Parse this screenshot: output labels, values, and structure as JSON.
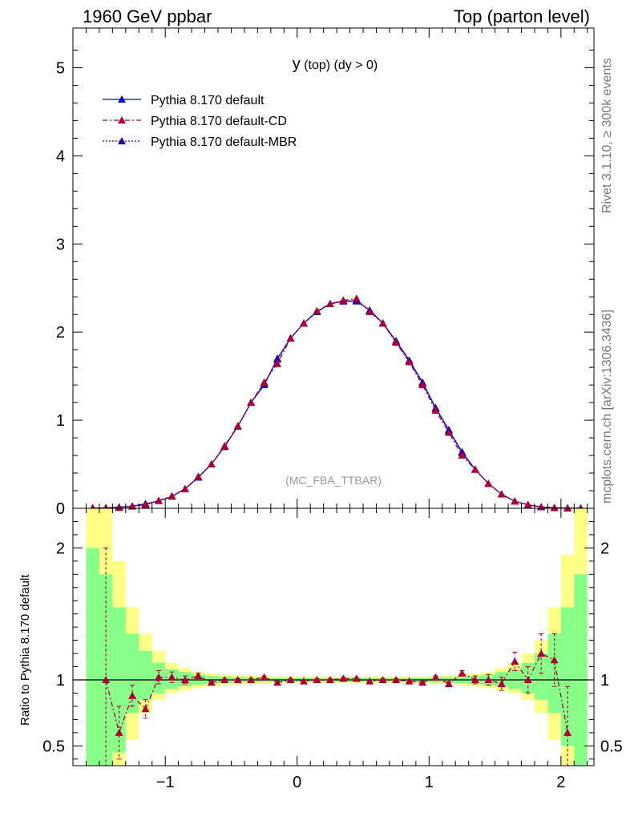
{
  "header": {
    "left": "1960 GeV ppbar",
    "right": "Top (parton level)"
  },
  "side_labels": {
    "rivet": "Rivet 3.1.10, ≥ 300k events",
    "mcplots": "mcplots.cern.ch [arXiv:1306.3436]"
  },
  "plot_title": {
    "main": "y",
    "sub": " (top)  (dy > 0)"
  },
  "watermark": "(MC_FBA_TTBAR)",
  "ratio_ylabel": "Ratio to Pythia 8.170 default",
  "legend": [
    {
      "name": "Pythia 8.170 default",
      "color": "#0000dd",
      "style": "solid"
    },
    {
      "name": "Pythia 8.170 default-CD",
      "color": "#aa0033",
      "style": "dashdot"
    },
    {
      "name": "Pythia 8.170 default-MBR",
      "color": "#2a0099",
      "style": "dotted"
    }
  ],
  "chart_data": {
    "type": "line",
    "x_ticks": [
      -1,
      0,
      1,
      2
    ],
    "x_tick_labels": [
      "−1",
      "0",
      "1",
      "2"
    ],
    "x_range": [
      -1.7,
      2.25
    ],
    "upper": {
      "y_range": [
        0,
        5.45
      ],
      "y_ticks": [
        0,
        1,
        2,
        3,
        4,
        5
      ],
      "x": [
        -1.55,
        -1.45,
        -1.35,
        -1.25,
        -1.15,
        -1.05,
        -0.95,
        -0.85,
        -0.75,
        -0.65,
        -0.55,
        -0.45,
        -0.35,
        -0.25,
        -0.15,
        -0.05,
        0.05,
        0.15,
        0.25,
        0.35,
        0.45,
        0.55,
        0.65,
        0.75,
        0.85,
        0.95,
        1.05,
        1.15,
        1.25,
        1.35,
        1.45,
        1.55,
        1.65,
        1.75,
        1.85,
        1.95,
        2.05,
        2.15
      ],
      "series": [
        {
          "name": "Pythia 8.170 default",
          "values": [
            0.003,
            0.005,
            0.012,
            0.025,
            0.05,
            0.085,
            0.135,
            0.22,
            0.35,
            0.5,
            0.7,
            0.93,
            1.2,
            1.4,
            1.7,
            1.93,
            2.1,
            2.23,
            2.32,
            2.35,
            2.35,
            2.25,
            2.1,
            1.9,
            1.68,
            1.43,
            1.14,
            0.89,
            0.64,
            0.44,
            0.28,
            0.16,
            0.08,
            0.04,
            0.015,
            0.006,
            0.002,
            0.001
          ]
        },
        {
          "name": "Pythia 8.170 default-CD",
          "values": [
            0.003,
            0.005,
            0.007,
            0.022,
            0.039,
            0.088,
            0.14,
            0.22,
            0.36,
            0.5,
            0.71,
            0.935,
            1.2,
            1.43,
            1.64,
            1.93,
            2.1,
            2.24,
            2.32,
            2.36,
            2.38,
            2.23,
            2.1,
            1.88,
            1.66,
            1.4,
            1.11,
            0.86,
            0.6,
            0.44,
            0.28,
            0.16,
            0.08,
            0.04,
            0.015,
            0.006,
            0.002,
            0.001
          ]
        },
        {
          "name": "Pythia 8.170 default-MBR",
          "values": [
            0.003,
            0.005,
            0.012,
            0.025,
            0.05,
            0.085,
            0.135,
            0.22,
            0.35,
            0.5,
            0.7,
            0.93,
            1.2,
            1.41,
            1.69,
            1.93,
            2.1,
            2.23,
            2.32,
            2.35,
            2.36,
            2.24,
            2.1,
            1.89,
            1.67,
            1.42,
            1.13,
            0.88,
            0.63,
            0.44,
            0.28,
            0.16,
            0.08,
            0.04,
            0.015,
            0.006,
            0.002,
            0.001
          ]
        }
      ]
    },
    "ratio": {
      "y_range": [
        0.35,
        2.3
      ],
      "y_ticks": [
        0.5,
        1,
        2
      ],
      "y_tick_labels": [
        "0.5",
        "1",
        "2"
      ],
      "reference": 1.0,
      "band_edges": [
        -1.6,
        -1.5,
        -1.4,
        -1.3,
        -1.2,
        -1.1,
        -1.0,
        -0.9,
        -0.8,
        -0.7,
        -0.6,
        -0.5,
        -0.4,
        -0.3,
        -0.2,
        -0.1,
        0.0,
        0.1,
        0.2,
        0.3,
        0.4,
        0.5,
        0.6,
        0.7,
        0.8,
        0.9,
        1.0,
        1.1,
        1.2,
        1.3,
        1.4,
        1.5,
        1.6,
        1.7,
        1.8,
        1.9,
        2.0,
        2.1,
        2.2
      ],
      "green_band": [
        [
          0.3,
          2.0
        ],
        [
          0.3,
          1.8
        ],
        [
          0.45,
          1.55
        ],
        [
          0.75,
          1.35
        ],
        [
          0.85,
          1.22
        ],
        [
          0.9,
          1.13
        ],
        [
          0.93,
          1.08
        ],
        [
          0.95,
          1.06
        ],
        [
          0.96,
          1.04
        ],
        [
          0.97,
          1.03
        ],
        [
          0.975,
          1.025
        ],
        [
          0.98,
          1.02
        ],
        [
          0.98,
          1.02
        ],
        [
          0.985,
          1.015
        ],
        [
          0.985,
          1.015
        ],
        [
          0.985,
          1.015
        ],
        [
          0.985,
          1.015
        ],
        [
          0.985,
          1.015
        ],
        [
          0.985,
          1.015
        ],
        [
          0.985,
          1.015
        ],
        [
          0.985,
          1.015
        ],
        [
          0.985,
          1.015
        ],
        [
          0.985,
          1.015
        ],
        [
          0.985,
          1.015
        ],
        [
          0.985,
          1.015
        ],
        [
          0.985,
          1.015
        ],
        [
          0.98,
          1.02
        ],
        [
          0.98,
          1.02
        ],
        [
          0.975,
          1.025
        ],
        [
          0.97,
          1.03
        ],
        [
          0.96,
          1.04
        ],
        [
          0.95,
          1.06
        ],
        [
          0.93,
          1.08
        ],
        [
          0.9,
          1.13
        ],
        [
          0.85,
          1.2
        ],
        [
          0.75,
          1.35
        ],
        [
          0.5,
          1.55
        ],
        [
          0.3,
          1.8
        ]
      ],
      "yellow_band": [
        [
          0.3,
          2.3
        ],
        [
          0.3,
          2.3
        ],
        [
          0.3,
          1.9
        ],
        [
          0.55,
          1.55
        ],
        [
          0.75,
          1.35
        ],
        [
          0.85,
          1.22
        ],
        [
          0.9,
          1.13
        ],
        [
          0.92,
          1.09
        ],
        [
          0.94,
          1.06
        ],
        [
          0.95,
          1.05
        ],
        [
          0.96,
          1.04
        ],
        [
          0.965,
          1.035
        ],
        [
          0.97,
          1.03
        ],
        [
          0.97,
          1.03
        ],
        [
          0.975,
          1.025
        ],
        [
          0.975,
          1.025
        ],
        [
          0.975,
          1.025
        ],
        [
          0.975,
          1.025
        ],
        [
          0.975,
          1.025
        ],
        [
          0.975,
          1.025
        ],
        [
          0.975,
          1.025
        ],
        [
          0.975,
          1.025
        ],
        [
          0.975,
          1.025
        ],
        [
          0.975,
          1.025
        ],
        [
          0.975,
          1.025
        ],
        [
          0.975,
          1.025
        ],
        [
          0.97,
          1.03
        ],
        [
          0.965,
          1.035
        ],
        [
          0.96,
          1.04
        ],
        [
          0.95,
          1.05
        ],
        [
          0.94,
          1.06
        ],
        [
          0.92,
          1.09
        ],
        [
          0.9,
          1.13
        ],
        [
          0.85,
          1.2
        ],
        [
          0.75,
          1.3
        ],
        [
          0.55,
          1.55
        ],
        [
          0.3,
          1.95
        ],
        [
          0.3,
          2.3
        ]
      ],
      "x": [
        -1.45,
        -1.35,
        -1.25,
        -1.15,
        -1.05,
        -0.95,
        -0.85,
        -0.75,
        -0.65,
        -0.55,
        -0.45,
        -0.35,
        -0.25,
        -0.15,
        -0.05,
        0.05,
        0.15,
        0.25,
        0.35,
        0.45,
        0.55,
        0.65,
        0.75,
        0.85,
        0.95,
        1.05,
        1.15,
        1.25,
        1.35,
        1.45,
        1.55,
        1.65,
        1.75,
        1.85,
        1.95,
        2.05
      ],
      "series": [
        {
          "name": "Pythia 8.170 default-CD",
          "values": [
            1.0,
            0.6,
            0.88,
            0.78,
            1.02,
            1.02,
            1.0,
            1.03,
            0.98,
            1.0,
            1.0,
            1.0,
            1.02,
            0.98,
            1.0,
            0.99,
            1.0,
            1.0,
            1.01,
            1.01,
            0.99,
            1.0,
            1.0,
            0.99,
            0.98,
            1.02,
            0.97,
            1.05,
            1.0,
            1.0,
            0.97,
            1.14,
            1.0,
            1.2,
            1.15,
            0.6
          ],
          "err_lo": [
            1.0,
            0.2,
            0.08,
            0.07,
            0.05,
            0.04,
            0.03,
            0.02,
            0.015,
            0.01,
            0.01,
            0.01,
            0.01,
            0.01,
            0.01,
            0.01,
            0.01,
            0.01,
            0.01,
            0.01,
            0.01,
            0.01,
            0.01,
            0.01,
            0.01,
            0.01,
            0.015,
            0.02,
            0.03,
            0.04,
            0.05,
            0.07,
            0.1,
            0.15,
            0.2,
            0.35
          ],
          "err_hi": [
            1.0,
            0.2,
            0.08,
            0.07,
            0.05,
            0.04,
            0.03,
            0.02,
            0.015,
            0.01,
            0.01,
            0.01,
            0.01,
            0.01,
            0.01,
            0.01,
            0.01,
            0.01,
            0.01,
            0.01,
            0.01,
            0.01,
            0.01,
            0.01,
            0.01,
            0.01,
            0.015,
            0.02,
            0.03,
            0.04,
            0.05,
            0.07,
            0.1,
            0.15,
            0.2,
            0.35
          ]
        }
      ]
    }
  }
}
